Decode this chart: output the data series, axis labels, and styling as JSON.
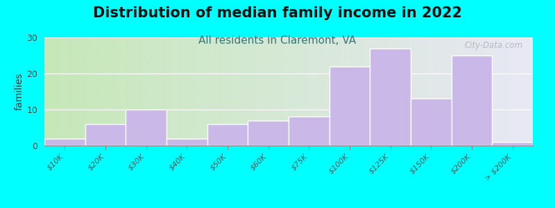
{
  "title": "Distribution of median family income in 2022",
  "subtitle": "All residents in Claremont, VA",
  "ylabel": "families",
  "categories": [
    "$10K",
    "$20K",
    "$30K",
    "$40K",
    "$50K",
    "$60K",
    "$75K",
    "$100K",
    "$125K",
    "$150K",
    "$200K",
    "> $200K"
  ],
  "values": [
    2,
    6,
    10,
    2,
    6,
    7,
    8,
    22,
    27,
    13,
    25,
    1
  ],
  "bar_color": "#c9b8e8",
  "bar_edgecolor": "#ffffff",
  "background_color": "#00ffff",
  "plot_bg_gradient_left": "#c5e8b8",
  "plot_bg_gradient_right": "#e8e8f5",
  "ylim": [
    0,
    30
  ],
  "yticks": [
    0,
    10,
    20,
    30
  ],
  "title_fontsize": 15,
  "subtitle_fontsize": 11,
  "subtitle_color": "#337777",
  "ylabel_fontsize": 10,
  "tick_fontsize": 8,
  "watermark_text": "City-Data.com"
}
